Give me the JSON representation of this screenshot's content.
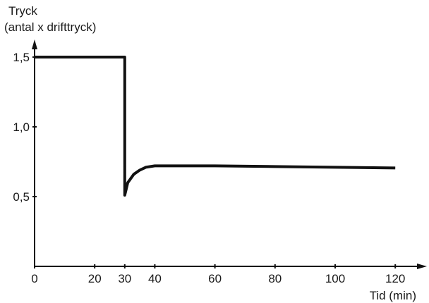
{
  "chart_data": {
    "type": "line",
    "ylabel_line1": "Tryck",
    "ylabel_line2": "(antal x drifttryck)",
    "xlabel": "Tid (min)",
    "xlim": [
      0,
      125
    ],
    "ylim": [
      0,
      1.5
    ],
    "xticks": [
      {
        "value": 0,
        "label": "0"
      },
      {
        "value": 20,
        "label": "20"
      },
      {
        "value": 30,
        "label": "30"
      },
      {
        "value": 40,
        "label": "40"
      },
      {
        "value": 60,
        "label": "60"
      },
      {
        "value": 80,
        "label": "80"
      },
      {
        "value": 100,
        "label": "100"
      },
      {
        "value": 120,
        "label": "120"
      }
    ],
    "yticks": [
      {
        "value": 0.5,
        "label": "0,5"
      },
      {
        "value": 1.0,
        "label": "1,0"
      },
      {
        "value": 1.5,
        "label": "1,5"
      }
    ],
    "grid": false,
    "series": [
      {
        "color": "#111111",
        "points": [
          [
            0,
            1.5
          ],
          [
            30,
            1.5
          ],
          [
            30,
            0.51
          ],
          [
            31,
            0.6
          ],
          [
            33,
            0.66
          ],
          [
            35,
            0.69
          ],
          [
            37,
            0.71
          ],
          [
            40,
            0.72
          ],
          [
            60,
            0.72
          ],
          [
            80,
            0.715
          ],
          [
            100,
            0.71
          ],
          [
            120,
            0.705
          ]
        ]
      }
    ]
  }
}
